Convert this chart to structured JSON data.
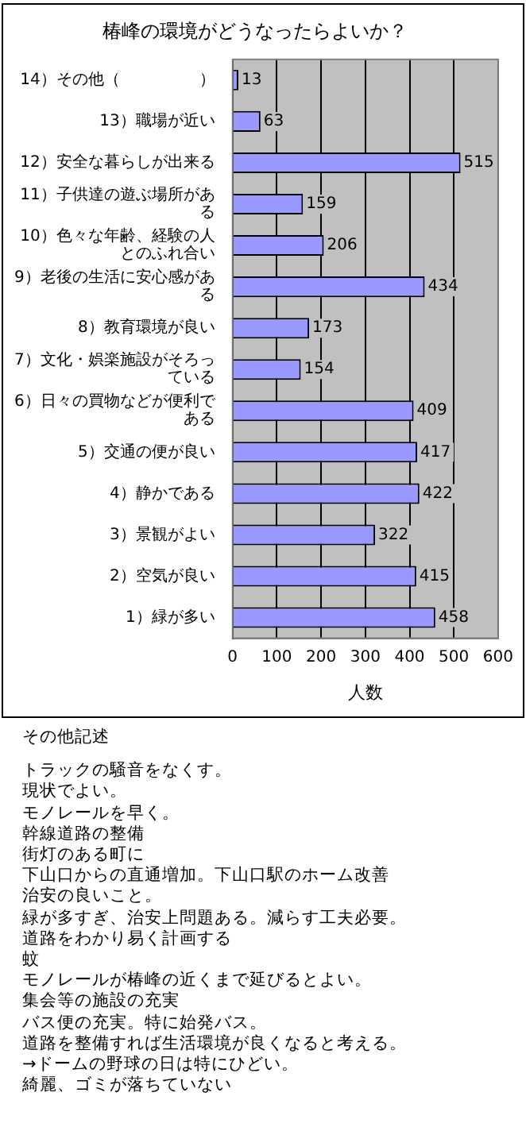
{
  "chart_data": {
    "type": "bar",
    "orientation": "horizontal",
    "title": "椿峰の環境がどうなったらよいか？",
    "xlabel": "人数",
    "categories": [
      "14）その他（　　　　　）",
      "13）職場が近い",
      "12）安全な暮らしが出来る",
      "11）子供達の遊ぶ場所がある",
      "10）色々な年齢、経験の人とのふれ合い",
      "9）老後の生活に安心感がある",
      "8）教育環境が良い",
      "7）文化・娯楽施設がそろっている",
      "6）日々の買物などが便利である",
      "5）交通の便が良い",
      "4）静かである",
      "3）景観がよい",
      "2）空気が良い",
      "1）緑が多い"
    ],
    "values": [
      13,
      63,
      515,
      159,
      206,
      434,
      173,
      154,
      409,
      417,
      422,
      322,
      415,
      458
    ],
    "color": "#9999ff",
    "xlim": [
      0,
      600
    ],
    "xticks": [
      0,
      100,
      200,
      300,
      400,
      500,
      600
    ],
    "grid": "x",
    "legend": false,
    "data_labels": true,
    "annotations": [
      "その他記述",
      "トラックの騒音をなくす。",
      "現状でよい。",
      "モノレールを早く。",
      "幹線道路の整備",
      "街灯のある町に",
      "下山口からの直通増加。下山口駅のホーム改善",
      "治安の良いこと。",
      "緑が多すぎ、治安上問題ある。減らす工夫必要。",
      "道路をわかり易く計画する",
      "蚊",
      "モノレールが椿峰の近くまで延びるとよい。",
      "集会等の施設の充実",
      "バス便の充実。特に始発バス。",
      "道路を整備すれば生活環境が良くなると考える。",
      "→ドームの野球の日は特にひどい。",
      "綺麗、ゴミが落ちていない"
    ]
  }
}
